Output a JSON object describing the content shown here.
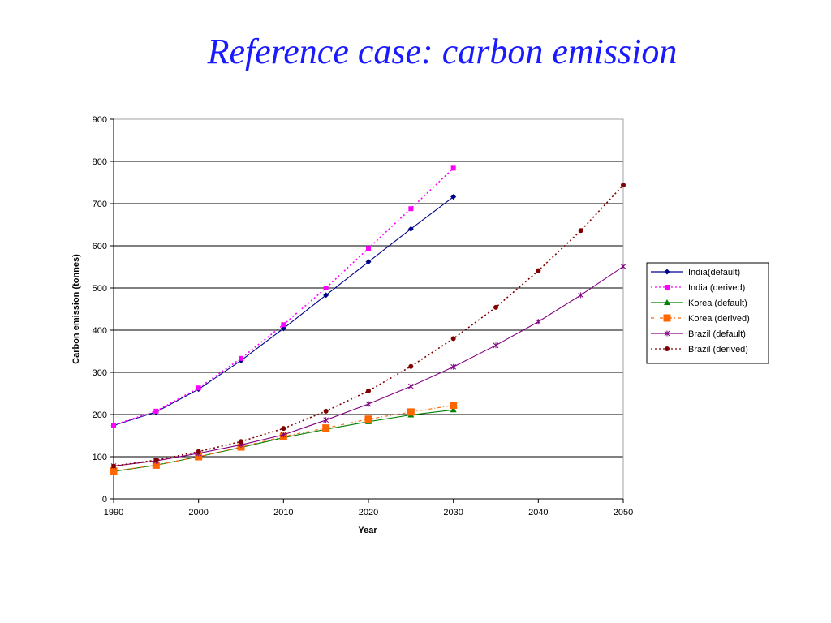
{
  "slide": {
    "title": "Reference case: carbon emission"
  },
  "chart_data": {
    "type": "line",
    "title": "",
    "xlabel": "Year",
    "ylabel": "Carbon emission (tonnes)",
    "xlim": [
      1990,
      2050
    ],
    "ylim": [
      0,
      900
    ],
    "x_ticks": [
      1990,
      2000,
      2010,
      2020,
      2030,
      2040,
      2050
    ],
    "y_ticks": [
      0,
      100,
      200,
      300,
      400,
      500,
      600,
      700,
      800,
      900
    ],
    "grid": "horizontal",
    "legend_position": "right",
    "series": [
      {
        "name": "India(default)",
        "color": "#00008b",
        "dash": "solid",
        "marker": "diamond",
        "x": [
          1990,
          1995,
          2000,
          2005,
          2010,
          2015,
          2020,
          2025,
          2030
        ],
        "values": [
          174,
          206,
          260,
          328,
          404,
          483,
          562,
          640,
          716
        ]
      },
      {
        "name": "India (derived)",
        "color": "#ff00ff",
        "dash": "dotted",
        "marker": "square",
        "x": [
          1990,
          1995,
          2000,
          2005,
          2010,
          2015,
          2020,
          2025,
          2030
        ],
        "values": [
          175,
          208,
          263,
          333,
          413,
          500,
          594,
          688,
          784
        ]
      },
      {
        "name": "Korea (default)",
        "color": "#008000",
        "dash": "solid",
        "marker": "triangle",
        "x": [
          1990,
          1995,
          2000,
          2005,
          2010,
          2015,
          2020,
          2025,
          2030
        ],
        "values": [
          65,
          80,
          100,
          122,
          145,
          165,
          183,
          199,
          211
        ]
      },
      {
        "name": "Korea (derived)",
        "color": "#ff6600",
        "dash": "dashdot",
        "marker": "square-large",
        "x": [
          1990,
          1995,
          2000,
          2005,
          2010,
          2015,
          2020,
          2025,
          2030
        ],
        "values": [
          66,
          80,
          100,
          123,
          148,
          168,
          189,
          206,
          222
        ]
      },
      {
        "name": "Brazil (default)",
        "color": "#800080",
        "dash": "solid",
        "marker": "star",
        "x": [
          1990,
          1995,
          2000,
          2005,
          2010,
          2015,
          2020,
          2025,
          2030,
          2035,
          2040,
          2045,
          2050
        ],
        "values": [
          78,
          90,
          108,
          128,
          152,
          187,
          225,
          267,
          313,
          364,
          420,
          483,
          551
        ]
      },
      {
        "name": "Brazil (derived)",
        "color": "#800000",
        "dash": "dotted",
        "marker": "circle",
        "x": [
          1990,
          1995,
          2000,
          2005,
          2010,
          2015,
          2020,
          2025,
          2030,
          2035,
          2040,
          2045,
          2050
        ],
        "values": [
          78,
          92,
          112,
          136,
          167,
          208,
          256,
          314,
          380,
          454,
          541,
          636,
          744
        ]
      }
    ]
  }
}
